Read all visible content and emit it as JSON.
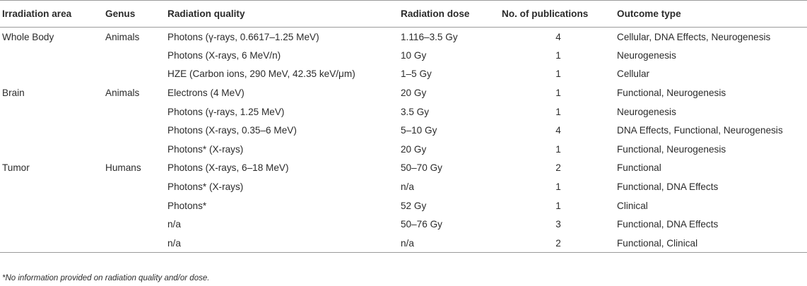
{
  "table": {
    "headers": [
      "Irradiation area",
      "Genus",
      "Radiation quality",
      "Radiation dose",
      "No. of publications",
      "Outcome type"
    ],
    "rows": [
      [
        "Whole Body",
        "Animals",
        "Photons (γ-rays, 0.6617–1.25 MeV)",
        "1.116–3.5 Gy",
        "4",
        "Cellular, DNA Effects, Neurogenesis"
      ],
      [
        "",
        "",
        "Photons (X-rays, 6 MeV/n)",
        "10 Gy",
        "1",
        "Neurogenesis"
      ],
      [
        "",
        "",
        "HZE (Carbon ions, 290 MeV, 42.35 keV/μm)",
        "1–5 Gy",
        "1",
        "Cellular"
      ],
      [
        "Brain",
        "Animals",
        "Electrons (4 MeV)",
        "20 Gy",
        "1",
        "Functional, Neurogenesis"
      ],
      [
        "",
        "",
        "Photons (γ-rays, 1.25 MeV)",
        "3.5 Gy",
        "1",
        "Neurogenesis"
      ],
      [
        "",
        "",
        "Photons (X-rays, 0.35–6 MeV)",
        "5–10 Gy",
        "4",
        "DNA Effects, Functional, Neurogenesis"
      ],
      [
        "",
        "",
        "Photons* (X-rays)",
        "20 Gy",
        "1",
        "Functional, Neurogenesis"
      ],
      [
        "Tumor",
        "Humans",
        "Photons (X-rays, 6–18 MeV)",
        "50–70 Gy",
        "2",
        "Functional"
      ],
      [
        "",
        "",
        "Photons* (X-rays)",
        "n/a",
        "1",
        "Functional, DNA Effects"
      ],
      [
        "",
        "",
        "Photons*",
        "52 Gy",
        "1",
        "Clinical"
      ],
      [
        "",
        "",
        "n/a",
        "50–76 Gy",
        "3",
        "Functional, DNA Effects"
      ],
      [
        "",
        "",
        "n/a",
        "n/a",
        "2",
        "Functional, Clinical"
      ]
    ]
  },
  "footnote": "*No information provided on radiation quality and/or dose."
}
